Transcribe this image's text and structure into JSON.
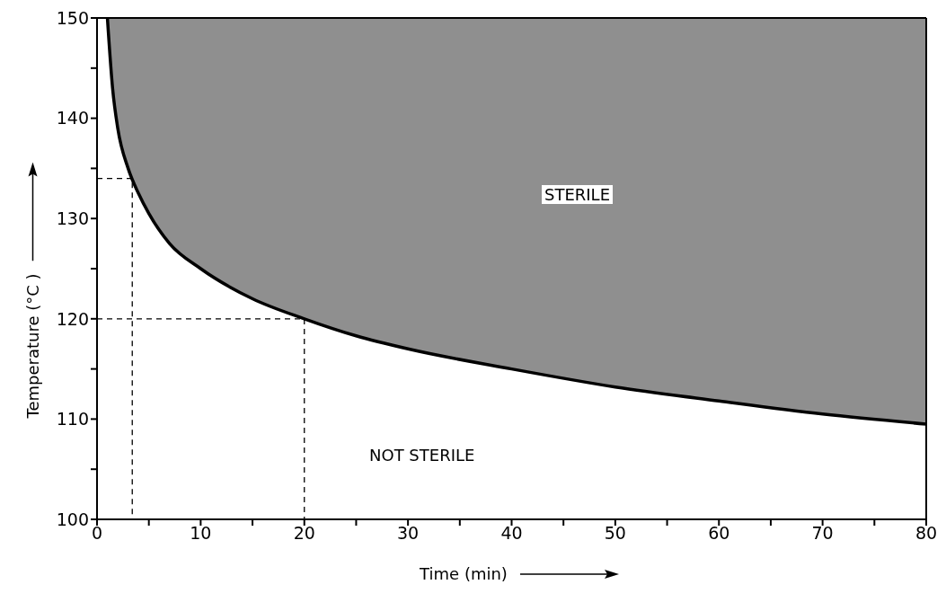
{
  "chart_data": {
    "type": "line",
    "xlabel": "Time (min)",
    "ylabel": "Temperature (°C )",
    "xlim": [
      0,
      80
    ],
    "ylim": [
      100,
      150
    ],
    "xticks": [
      0,
      {
        "value": 5,
        "label": null
      },
      10,
      {
        "value": 15,
        "label": null
      },
      20,
      {
        "value": 25,
        "label": null
      },
      30,
      {
        "value": 35,
        "label": null
      },
      40,
      {
        "value": 45,
        "label": null
      },
      50,
      {
        "value": 55,
        "label": null
      },
      60,
      {
        "value": 65,
        "label": null
      },
      70,
      {
        "value": 75,
        "label": null
      },
      80
    ],
    "yticks": [
      100,
      {
        "value": 105,
        "label": null
      },
      110,
      {
        "value": 115,
        "label": null
      },
      120,
      {
        "value": 125,
        "label": null
      },
      130,
      {
        "value": 135,
        "label": null
      },
      140,
      {
        "value": 145,
        "label": null
      },
      150
    ],
    "series": [
      {
        "color": "#000000",
        "line_style": "solid",
        "x": [
          1,
          1.5,
          2,
          3,
          4,
          5,
          7,
          10,
          15,
          20,
          25,
          30,
          40,
          50,
          60,
          70,
          80
        ],
        "values": [
          150,
          143,
          139,
          135,
          132.5,
          130.5,
          127.5,
          125,
          122,
          120,
          118.3,
          117,
          115,
          113.2,
          111.8,
          110.5,
          109.5
        ],
        "lower": [
          150,
          143,
          139,
          135,
          132.5,
          130.5,
          127.5,
          125,
          122,
          120,
          118.3,
          117,
          115,
          113.2,
          111.8,
          110.5,
          109.5
        ],
        "upper": [
          150,
          150,
          150,
          150,
          150,
          150,
          150,
          150,
          150,
          150,
          150,
          150,
          150,
          150,
          150,
          150,
          150
        ]
      },
      {
        "color": "#000000",
        "line_style": "dashed",
        "x": [
          0,
          20,
          20
        ],
        "values": [
          120,
          120,
          100
        ]
      },
      {
        "color": "#000000",
        "line_style": "dashed",
        "x": [
          0,
          3.4,
          3.4
        ],
        "values": [
          134,
          134,
          100
        ]
      }
    ],
    "annotations": [
      "STERILE",
      "NOT STERILE"
    ]
  }
}
